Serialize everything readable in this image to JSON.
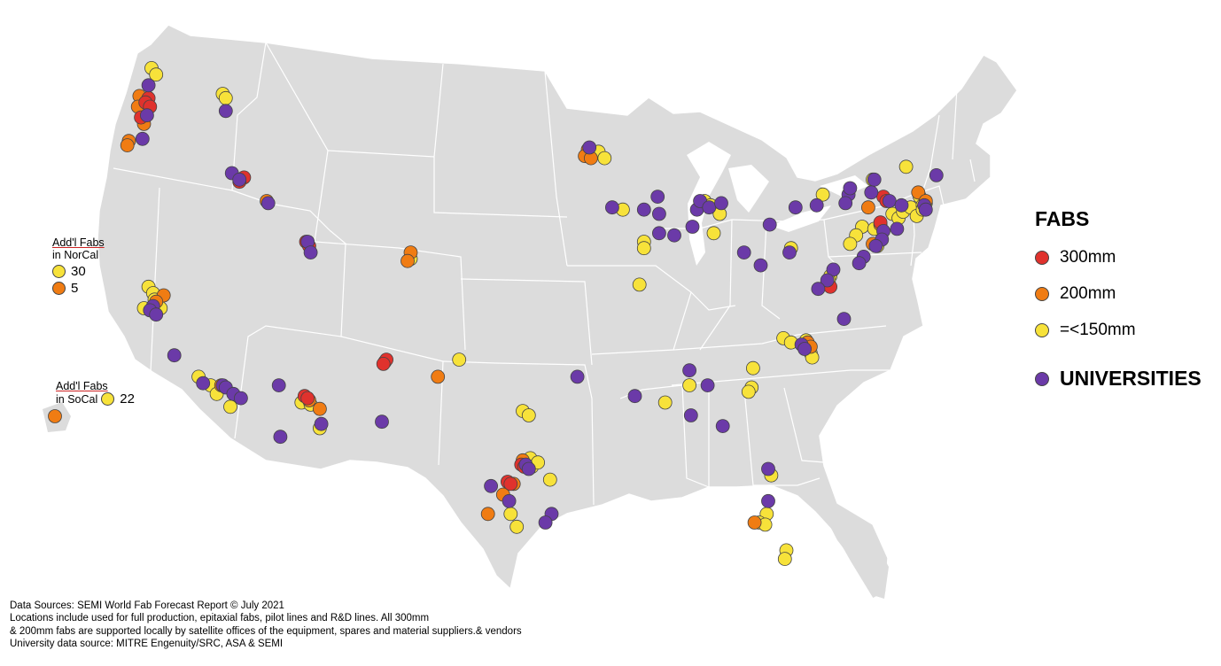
{
  "colors": {
    "map_fill": "#dcdcdc",
    "border": "#ffffff",
    "fab_300mm": "#e0322d",
    "fab_200mm": "#f07c13",
    "fab_150mm": "#f7e23a",
    "university": "#6b3aa8"
  },
  "legend": {
    "title": "FABS",
    "items": [
      {
        "key": "fab_300mm",
        "label": "300mm"
      },
      {
        "key": "fab_200mm",
        "label": "200mm"
      },
      {
        "key": "fab_150mm",
        "label": "=<150mm"
      }
    ],
    "university_label": "UNIVERSITIES"
  },
  "notes": {
    "norcal": {
      "line1": "Add'l Fabs",
      "line2": "in NorCal",
      "count_150": "30",
      "count_200": "5"
    },
    "socal": {
      "line1": "Add'l Fabs",
      "line2": "in SoCal",
      "count_150": "22"
    }
  },
  "sources": [
    "Data Sources: SEMI World Fab Forecast Report © July 2021",
    "Locations include used for full production, epitaxial fabs, pilot lines and R&D lines. All 300mm",
    "& 200mm fabs are supported locally by satellite offices of the equipment, spares and material suppliers.& vendors",
    "University data source:  MITRE Engenuity/SRC, ASA & SEMI"
  ],
  "map_markers": {
    "fab_300mm": [
      [
        -122.3,
        47.4
      ],
      [
        -122.5,
        47.2
      ],
      [
        -122.2,
        47.0
      ],
      [
        -122.8,
        46.5
      ],
      [
        -116.0,
        43.7
      ],
      [
        -116.3,
        43.5
      ],
      [
        -111.9,
        40.7
      ],
      [
        -111.7,
        40.5
      ],
      [
        -112.0,
        33.5
      ],
      [
        -111.8,
        33.4
      ],
      [
        -106.6,
        35.2
      ],
      [
        -106.8,
        35.0
      ],
      [
        -97.7,
        30.3
      ],
      [
        -97.5,
        30.2
      ],
      [
        -98.6,
        29.5
      ],
      [
        -98.4,
        29.4
      ],
      [
        -73.8,
        42.8
      ],
      [
        -73.6,
        42.6
      ],
      [
        -74.0,
        41.6
      ],
      [
        -77.5,
        38.8
      ],
      [
        -77.3,
        38.6
      ]
    ],
    "fab_200mm": [
      [
        -122.9,
        47.5
      ],
      [
        -123.0,
        47.0
      ],
      [
        -122.6,
        46.2
      ],
      [
        -123.6,
        45.4
      ],
      [
        -123.7,
        45.2
      ],
      [
        -114.5,
        42.6
      ],
      [
        -105.0,
        40.2
      ],
      [
        -105.2,
        39.8
      ],
      [
        -93.3,
        45.0
      ],
      [
        -93.5,
        44.7
      ],
      [
        -93.1,
        44.6
      ],
      [
        -121.3,
        38.2
      ],
      [
        -121.8,
        37.9
      ],
      [
        -117.5,
        34.0
      ],
      [
        -111.7,
        33.3
      ],
      [
        -111.0,
        32.9
      ],
      [
        -106.7,
        35.1
      ],
      [
        -103.2,
        34.4
      ],
      [
        -97.6,
        30.5
      ],
      [
        -98.2,
        29.4
      ],
      [
        -98.9,
        28.9
      ],
      [
        -99.9,
        28.0
      ],
      [
        -71.5,
        43.0
      ],
      [
        -71.0,
        42.6
      ],
      [
        -74.8,
        42.3
      ],
      [
        -74.0,
        41.5
      ],
      [
        -74.5,
        40.6
      ],
      [
        -78.8,
        36.0
      ],
      [
        -78.6,
        35.8
      ],
      [
        -82.3,
        27.6
      ],
      [
        -157.9,
        21.4
      ]
    ],
    "fab_150mm": [
      [
        -122.1,
        48.8
      ],
      [
        -121.8,
        48.5
      ],
      [
        -117.4,
        47.6
      ],
      [
        -117.2,
        47.4
      ],
      [
        -122.3,
        38.6
      ],
      [
        -122.0,
        38.3
      ],
      [
        -121.9,
        38.0
      ],
      [
        -121.5,
        37.6
      ],
      [
        -122.6,
        37.6
      ],
      [
        -119.0,
        34.4
      ],
      [
        -118.2,
        34.0
      ],
      [
        -117.8,
        33.6
      ],
      [
        -116.9,
        33.0
      ],
      [
        -112.2,
        33.2
      ],
      [
        -111.6,
        33.1
      ],
      [
        -111.0,
        32.0
      ],
      [
        -105.0,
        39.9
      ],
      [
        -101.8,
        35.2
      ],
      [
        -97.6,
        32.8
      ],
      [
        -97.2,
        32.6
      ],
      [
        -97.1,
        30.6
      ],
      [
        -97.0,
        30.2
      ],
      [
        -96.6,
        30.4
      ],
      [
        -95.8,
        29.6
      ],
      [
        -98.4,
        28.0
      ],
      [
        -98.0,
        27.4
      ],
      [
        -92.6,
        44.9
      ],
      [
        -92.2,
        44.6
      ],
      [
        -91.0,
        42.2
      ],
      [
        -89.6,
        40.7
      ],
      [
        -89.6,
        40.4
      ],
      [
        -89.9,
        38.7
      ],
      [
        -85.6,
        42.6
      ],
      [
        -85.2,
        42.4
      ],
      [
        -84.6,
        42.0
      ],
      [
        -85.0,
        41.1
      ],
      [
        -79.9,
        40.4
      ],
      [
        -77.8,
        42.9
      ],
      [
        -75.2,
        41.4
      ],
      [
        -75.6,
        41.0
      ],
      [
        -76.0,
        40.6
      ],
      [
        -74.2,
        40.5
      ],
      [
        -74.4,
        41.3
      ],
      [
        -73.2,
        42.0
      ],
      [
        -72.8,
        41.8
      ],
      [
        -72.5,
        42.1
      ],
      [
        -72.0,
        42.3
      ],
      [
        -71.4,
        42.8
      ],
      [
        -71.2,
        42.4
      ],
      [
        -71.0,
        42.5
      ],
      [
        -71.6,
        41.9
      ],
      [
        -71.2,
        42.2
      ],
      [
        -72.3,
        44.2
      ],
      [
        -74.5,
        43.6
      ],
      [
        -77.3,
        39.1
      ],
      [
        -77.4,
        38.9
      ],
      [
        -80.4,
        36.2
      ],
      [
        -79.9,
        36.0
      ],
      [
        -78.9,
        36.1
      ],
      [
        -78.6,
        35.5
      ],
      [
        -78.5,
        35.3
      ],
      [
        -82.4,
        34.8
      ],
      [
        -82.5,
        33.9
      ],
      [
        -82.7,
        33.7
      ],
      [
        -88.2,
        33.2
      ],
      [
        -86.6,
        34.0
      ],
      [
        -81.2,
        29.8
      ],
      [
        -81.5,
        28.0
      ],
      [
        -82.0,
        27.6
      ],
      [
        -81.6,
        27.5
      ],
      [
        -80.2,
        26.3
      ],
      [
        -80.3,
        25.9
      ]
    ],
    "university": [
      [
        -122.3,
        48.0
      ],
      [
        -117.2,
        46.8
      ],
      [
        -122.4,
        46.6
      ],
      [
        -122.7,
        45.5
      ],
      [
        -116.8,
        43.9
      ],
      [
        -116.3,
        43.6
      ],
      [
        -114.4,
        42.5
      ],
      [
        -111.8,
        40.7
      ],
      [
        -111.6,
        40.2
      ],
      [
        -122.0,
        37.7
      ],
      [
        -122.2,
        37.5
      ],
      [
        -121.8,
        37.3
      ],
      [
        -120.6,
        35.4
      ],
      [
        -118.7,
        34.1
      ],
      [
        -117.4,
        34.0
      ],
      [
        -117.2,
        33.9
      ],
      [
        -116.7,
        33.6
      ],
      [
        -116.2,
        33.4
      ],
      [
        -113.7,
        34.0
      ],
      [
        -110.9,
        32.2
      ],
      [
        -113.6,
        31.6
      ],
      [
        -106.9,
        32.3
      ],
      [
        -97.4,
        30.3
      ],
      [
        -97.2,
        30.1
      ],
      [
        -98.5,
        28.6
      ],
      [
        -95.7,
        28.0
      ],
      [
        -96.1,
        27.6
      ],
      [
        -99.7,
        29.3
      ],
      [
        -94.0,
        34.4
      ],
      [
        -93.2,
        45.1
      ],
      [
        -91.7,
        42.3
      ],
      [
        -89.6,
        42.2
      ],
      [
        -88.7,
        42.8
      ],
      [
        -88.6,
        42.0
      ],
      [
        -88.6,
        41.1
      ],
      [
        -87.6,
        41.0
      ],
      [
        -86.4,
        41.4
      ],
      [
        -86.1,
        42.2
      ],
      [
        -85.9,
        42.6
      ],
      [
        -85.3,
        42.3
      ],
      [
        -84.5,
        42.5
      ],
      [
        -83.0,
        40.2
      ],
      [
        -81.3,
        41.5
      ],
      [
        -80.0,
        40.2
      ],
      [
        -81.9,
        39.6
      ],
      [
        -79.6,
        42.3
      ],
      [
        -78.2,
        42.4
      ],
      [
        -76.1,
        42.9
      ],
      [
        -76.0,
        43.2
      ],
      [
        -76.3,
        42.5
      ],
      [
        -74.4,
        43.6
      ],
      [
        -74.6,
        43.0
      ],
      [
        -73.4,
        42.6
      ],
      [
        -72.6,
        42.4
      ],
      [
        -71.1,
        42.4
      ],
      [
        -70.3,
        43.8
      ],
      [
        -71.0,
        42.2
      ],
      [
        -72.9,
        41.3
      ],
      [
        -73.8,
        41.2
      ],
      [
        -73.9,
        40.8
      ],
      [
        -74.3,
        40.5
      ],
      [
        -75.1,
        40.0
      ],
      [
        -75.4,
        39.7
      ],
      [
        -77.1,
        39.4
      ],
      [
        -77.5,
        38.9
      ],
      [
        -78.1,
        38.5
      ],
      [
        -76.4,
        37.1
      ],
      [
        -79.2,
        35.9
      ],
      [
        -79.0,
        35.7
      ],
      [
        -90.2,
        33.5
      ],
      [
        -86.6,
        34.7
      ],
      [
        -85.4,
        34.0
      ],
      [
        -86.5,
        32.6
      ],
      [
        -84.4,
        32.1
      ],
      [
        -81.4,
        30.1
      ],
      [
        -81.4,
        28.6
      ]
    ]
  }
}
